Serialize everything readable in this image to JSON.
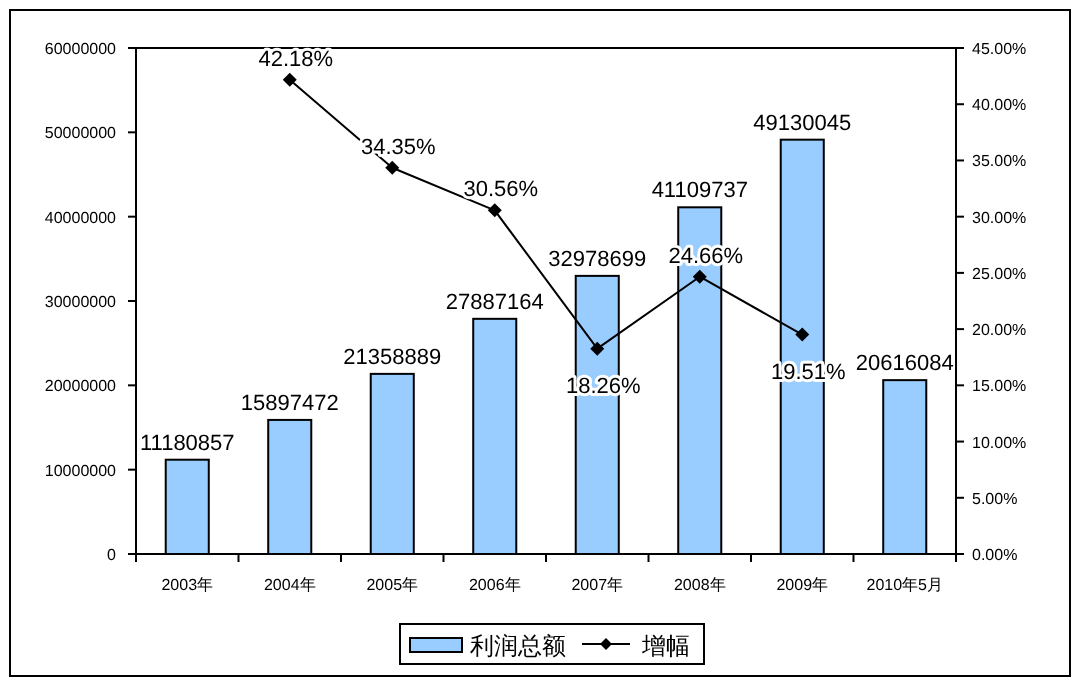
{
  "chart_data": {
    "type": "bar",
    "categories": [
      "2003年",
      "2004年",
      "2005年",
      "2006年",
      "2007年",
      "2008年",
      "2009年",
      "2010年5月"
    ],
    "series": [
      {
        "name": "利润总额",
        "color": "#99ccff",
        "values": [
          11180857,
          15897472,
          21358889,
          27887164,
          32978699,
          41109737,
          49130045,
          20616084
        ],
        "data_labels": true
      },
      {
        "name": "增幅",
        "type": "line",
        "axis": "y2",
        "color": "#000000",
        "marker": "diamond",
        "values": [
          null,
          42.18,
          34.35,
          30.56,
          18.26,
          24.66,
          19.51,
          null
        ],
        "value_labels": [
          null,
          "42.18%",
          "34.35%",
          "30.56%",
          "18.26%",
          "24.66%",
          "19.51%",
          null
        ]
      }
    ],
    "ylim": [
      0,
      60000000
    ],
    "yticks": [
      0,
      10000000,
      20000000,
      30000000,
      40000000,
      50000000,
      60000000
    ],
    "y2lim": [
      0,
      45
    ],
    "y2ticks": [
      {
        "value": 0,
        "label": "0.00%"
      },
      {
        "value": 5,
        "label": "5.00%"
      },
      {
        "value": 10,
        "label": "10.00%"
      },
      {
        "value": 15,
        "label": "15.00%"
      },
      {
        "value": 20,
        "label": "20.00%"
      },
      {
        "value": 25,
        "label": "25.00%"
      },
      {
        "value": 30,
        "label": "30.00%"
      },
      {
        "value": 35,
        "label": "35.00%"
      },
      {
        "value": 40,
        "label": "40.00%"
      },
      {
        "value": 45,
        "label": "45.00%"
      }
    ],
    "grid": false,
    "legend": "bottom"
  }
}
